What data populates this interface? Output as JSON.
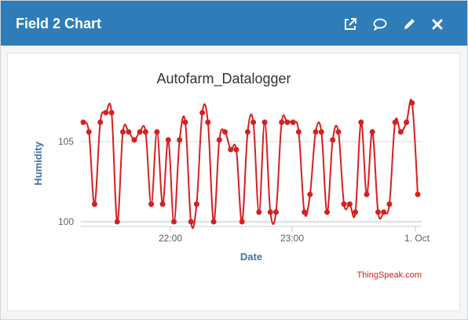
{
  "widget": {
    "title": "Field 2 Chart",
    "icons": [
      "external-link-icon",
      "comment-icon",
      "pencil-icon",
      "close-icon"
    ]
  },
  "chart_data": {
    "type": "line",
    "title": "Autofarm_Datalogger",
    "xlabel": "Date",
    "ylabel": "Humidity",
    "x_tick_labels": [
      "22:00",
      "23:00",
      "1. Oct"
    ],
    "y_tick_labels": [
      "100",
      "105"
    ],
    "ylim": [
      99.5,
      108.5
    ],
    "grid": true,
    "legend": "none",
    "series": [
      {
        "color": "#d62020",
        "values": [
          106.2,
          105.6,
          101.1,
          106.2,
          106.8,
          106.8,
          100.0,
          105.6,
          105.6,
          105.1,
          105.6,
          105.6,
          101.1,
          105.6,
          101.1,
          105.1,
          100.0,
          105.1,
          106.2,
          100.0,
          101.1,
          106.8,
          106.2,
          100.0,
          105.1,
          105.6,
          104.5,
          104.5,
          100.0,
          105.6,
          106.2,
          100.6,
          106.2,
          100.6,
          100.6,
          106.2,
          106.2,
          106.2,
          105.6,
          100.6,
          101.7,
          105.6,
          105.6,
          100.6,
          105.1,
          105.6,
          101.1,
          101.1,
          100.6,
          106.2,
          101.7,
          105.6,
          100.6,
          100.6,
          101.1,
          106.2,
          105.6,
          106.2,
          107.4,
          101.7
        ]
      }
    ],
    "credit": "ThingSpeak.com"
  }
}
